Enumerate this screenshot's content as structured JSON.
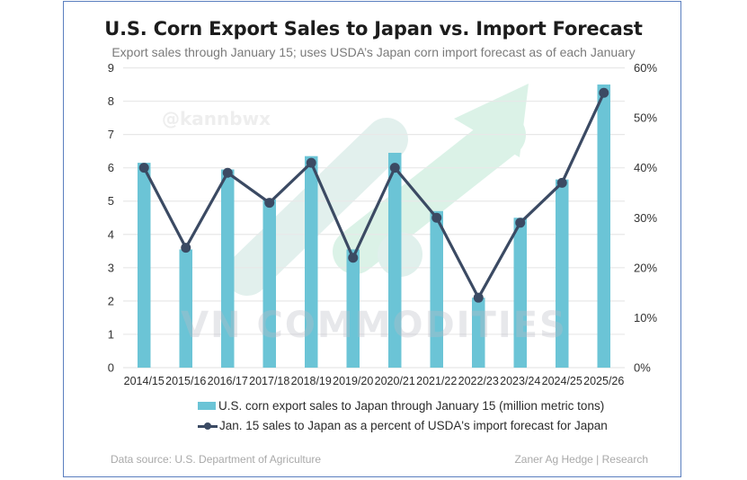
{
  "chart_data": {
    "type": "bar+line",
    "title": "U.S. Corn Export Sales to Japan vs. Import Forecast",
    "subtitle": "Export sales through January 15; uses USDA’s Japan corn import forecast as of each January",
    "categories": [
      "2014/15",
      "2015/16",
      "2016/17",
      "2017/18",
      "2018/19",
      "2019/20",
      "2020/21",
      "2021/22",
      "2022/23",
      "2023/24",
      "2024/25",
      "2025/26"
    ],
    "series": [
      {
        "name": "U.S. corn export sales to Japan through January 15 (million metric tons)",
        "type": "bar",
        "axis": "left",
        "color": "#6bc4d6",
        "values": [
          6.15,
          3.55,
          5.95,
          5.05,
          6.35,
          3.55,
          6.45,
          4.7,
          2.1,
          4.5,
          5.65,
          8.5
        ]
      },
      {
        "name": "Jan. 15 sales to Japan as a percent of USDA's import forecast for Japan",
        "type": "line",
        "axis": "right",
        "color": "#3b4a63",
        "values": [
          40,
          24,
          39,
          33,
          41,
          22,
          40,
          30,
          14,
          29,
          37,
          55
        ]
      }
    ],
    "left_axis": {
      "ylim": [
        0,
        9
      ],
      "ticks": [
        "0",
        "1",
        "2",
        "3",
        "4",
        "5",
        "6",
        "7",
        "8",
        "9"
      ]
    },
    "right_axis": {
      "ylim": [
        0,
        60
      ],
      "ticks": [
        "0%",
        "10%",
        "20%",
        "30%",
        "40%",
        "50%",
        "60%"
      ]
    },
    "grid": true,
    "legend_position": "bottom",
    "source": "Data source: U.S. Department of Agriculture",
    "credit": "Zaner Ag Hedge | Research"
  },
  "watermarks": {
    "handle": "@kannbwx",
    "brand": "VN COMMODITIES",
    "arrow_color": "#cfeee0"
  }
}
